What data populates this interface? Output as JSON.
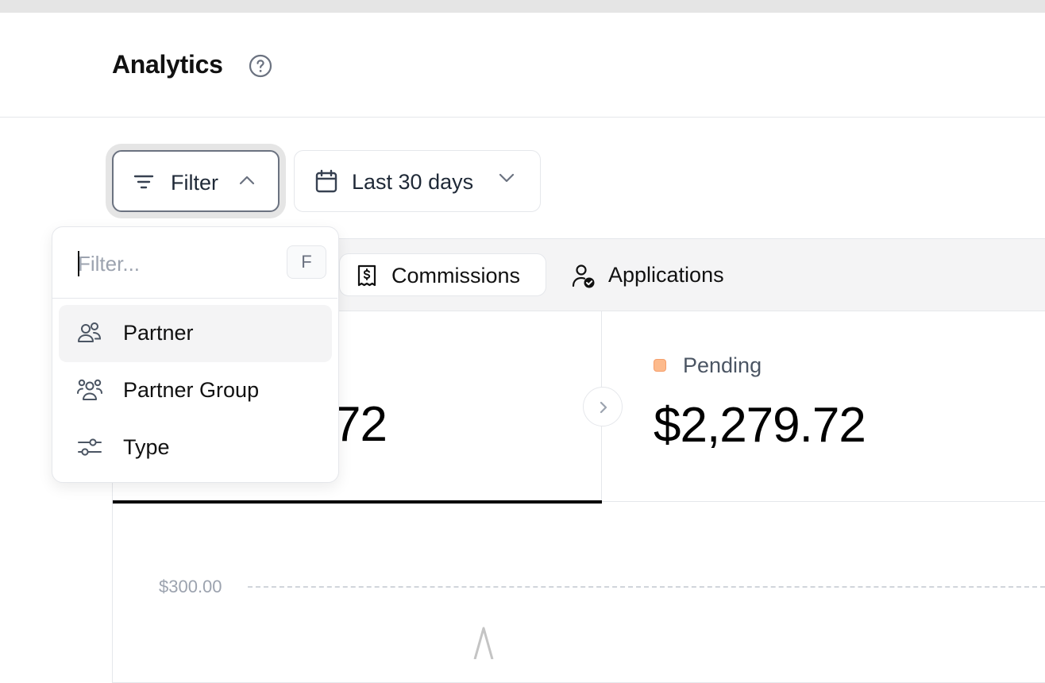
{
  "header": {
    "title": "Analytics",
    "help_icon": "question-circle-icon"
  },
  "toolbar": {
    "filter_label": "Filter",
    "filter_icon": "filter-lines-icon",
    "date_label": "Last 30 days",
    "date_icon": "calendar-icon"
  },
  "tabs": [
    {
      "label": "Commissions",
      "icon": "receipt-dollar-icon",
      "selected": true
    },
    {
      "label": "Applications",
      "icon": "user-check-icon",
      "selected": false
    }
  ],
  "metrics": {
    "first_value_visible": "72",
    "pending_label": "Pending",
    "pending_value": "$2,279.72",
    "pending_color": "#fdba8c"
  },
  "chart": {
    "y_tick": "$300.00"
  },
  "filter_dropdown": {
    "placeholder": "Filter...",
    "shortcut": "F",
    "items": [
      {
        "label": "Partner",
        "icon": "users-icon"
      },
      {
        "label": "Partner Group",
        "icon": "users-group-icon"
      },
      {
        "label": "Type",
        "icon": "sliders-icon"
      }
    ]
  }
}
